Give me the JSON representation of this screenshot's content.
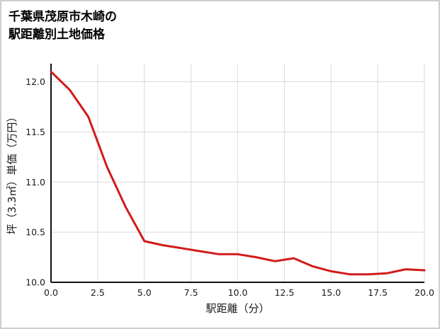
{
  "title": {
    "line1": "千葉県茂原市木崎の",
    "line2": "駅距離別土地価格"
  },
  "chart_data": {
    "type": "line",
    "title": "千葉県茂原市木崎の駅距離別土地価格",
    "xlabel": "駅距離（分）",
    "ylabel": "坪（3.3㎡）単価（万円）",
    "x": [
      0,
      1,
      2,
      3,
      4,
      5,
      6,
      7,
      8,
      9,
      10,
      11,
      12,
      13,
      14,
      15,
      16,
      17,
      18,
      19,
      20
    ],
    "y": [
      12.1,
      11.92,
      11.65,
      11.15,
      10.75,
      10.41,
      10.37,
      10.34,
      10.31,
      10.28,
      10.28,
      10.25,
      10.21,
      10.24,
      10.16,
      10.11,
      10.08,
      10.08,
      10.09,
      10.13,
      10.12
    ],
    "xlim": [
      0,
      20
    ],
    "ylim": [
      10.0,
      12.18
    ],
    "xticks": [
      0,
      2.5,
      5,
      7.5,
      10,
      12.5,
      15,
      17.5,
      20
    ],
    "xtick_labels": [
      "0.0",
      "2.5",
      "5.0",
      "7.5",
      "10.0",
      "12.5",
      "15.0",
      "17.5",
      "20.0"
    ],
    "yticks": [
      10.0,
      10.5,
      11.0,
      11.5,
      12.0
    ],
    "ytick_labels": [
      "10.0",
      "10.5",
      "11.0",
      "11.5",
      "12.0"
    ],
    "grid": true,
    "legend": "none",
    "line_color": "#d21a1a",
    "grid_color": "#dadada",
    "axis_color": "#111111",
    "tick_label_color": "#1a1a1a"
  }
}
